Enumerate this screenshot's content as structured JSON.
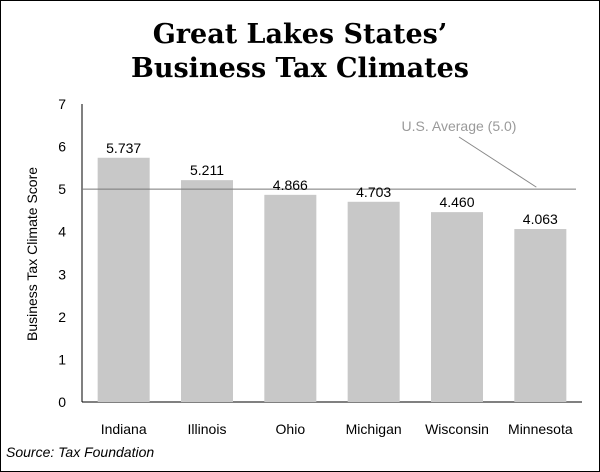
{
  "chart_data": {
    "type": "bar",
    "title": [
      "Great Lakes States’",
      "Business Tax Climates"
    ],
    "categories": [
      "Indiana",
      "Illinois",
      "Ohio",
      "Michigan",
      "Wisconsin",
      "Minnesota"
    ],
    "values": [
      5.737,
      5.211,
      4.866,
      4.703,
      4.46,
      4.063
    ],
    "value_labels": [
      "5.737",
      "5.211",
      "4.866",
      "4.703",
      "4.460",
      "4.063"
    ],
    "ylabel": "Business Tax Climate Score",
    "xlabel": "",
    "ylim": [
      0,
      7
    ],
    "yticks": [
      0,
      1,
      2,
      3,
      4,
      5,
      6,
      7
    ],
    "reference_line": {
      "value": 5.0,
      "label": "U.S. Average (5.0)"
    },
    "grid": false,
    "legend": "none",
    "bar_color": "#c8c8c8",
    "source": "Source: Tax Foundation"
  }
}
